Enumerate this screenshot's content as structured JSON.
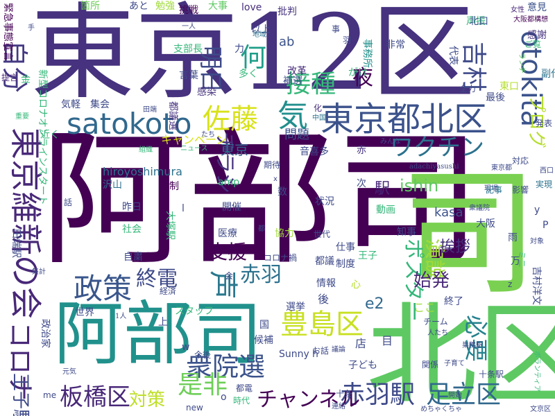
{
  "cloud": {
    "words": [
      {
        "text": "阿部司",
        "weight": 1.0,
        "color": "#440154"
      },
      {
        "text": "東京12区",
        "weight": 0.92,
        "color": "#46327e"
      },
      {
        "text": "北区",
        "weight": 0.66,
        "color": "#5ec962"
      },
      {
        "text": "阿部司",
        "weight": 0.48,
        "color": "#21918c"
      },
      {
        "text": "司",
        "weight": 0.46,
        "color": "#7ad151"
      },
      {
        "text": "otokita",
        "weight": 0.3,
        "color": "#3b528b"
      },
      {
        "text": "東京都北区",
        "weight": 0.26,
        "color": "#3b528b"
      },
      {
        "text": "satokoto",
        "weight": 0.24,
        "color": "#31688e"
      },
      {
        "text": "東京維新の会",
        "weight": 0.24,
        "color": "#482878"
      },
      {
        "text": "自分",
        "weight": 0.18,
        "color": "#443983"
      },
      {
        "text": "豊島区",
        "weight": 0.18,
        "color": "#c8e020"
      },
      {
        "text": "衆院選",
        "weight": 0.18,
        "color": "#3b528b"
      },
      {
        "text": "政策",
        "weight": 0.16,
        "color": "#39568c"
      },
      {
        "text": "ワクチン",
        "weight": 0.16,
        "color": "#2c728e"
      },
      {
        "text": "佐藤",
        "weight": 0.14,
        "color": "#d8e219"
      },
      {
        "text": "赤羽駅",
        "weight": 0.14,
        "color": "#3e4a89"
      },
      {
        "text": "足立区",
        "weight": 0.14,
        "color": "#31688e"
      },
      {
        "text": "板橋区",
        "weight": 0.14,
        "color": "#482878"
      },
      {
        "text": "コロナ",
        "weight": 0.14,
        "color": "#482878"
      },
      {
        "text": "声",
        "weight": 0.14,
        "color": "#2a788e"
      },
      {
        "text": "接種",
        "weight": 0.14,
        "color": "#35b779"
      },
      {
        "text": "何",
        "weight": 0.12,
        "color": "#1f9e89"
      },
      {
        "text": "気",
        "weight": 0.12,
        "color": "#218f8d"
      },
      {
        "text": "明日",
        "weight": 0.12,
        "color": "#3e4a89"
      },
      {
        "text": "吉村",
        "weight": 0.12,
        "color": "#3e4a89"
      },
      {
        "text": "チャンネル",
        "weight": 0.12,
        "color": "#440154"
      },
      {
        "text": "是非",
        "weight": 0.12,
        "color": "#6ece58"
      },
      {
        "text": "必要",
        "weight": 0.1,
        "color": "#26828e"
      },
      {
        "text": "演説",
        "weight": 0.1,
        "color": "#a0da39"
      },
      {
        "text": "王子駅",
        "weight": 0.1,
        "color": "#3e4a89"
      },
      {
        "text": "対策",
        "weight": 0.1,
        "color": "#bddf26"
      },
      {
        "text": "ポスター",
        "weight": 0.1,
        "color": "#35b779"
      },
      {
        "text": "プログ",
        "weight": 0.1,
        "color": "#b5de2b"
      },
      {
        "text": "チラシ",
        "weight": 0.1,
        "color": "#46327e"
      },
      {
        "text": "夜",
        "weight": 0.1,
        "color": "#440154"
      },
      {
        "text": "赤羽",
        "weight": 0.1,
        "color": "#2c728e"
      },
      {
        "text": "支援",
        "weight": 0.1,
        "color": "#440154"
      },
      {
        "text": "終電",
        "weight": 0.1,
        "color": "#3e4a89"
      },
      {
        "text": "始発",
        "weight": 0.1,
        "color": "#482878"
      },
      {
        "text": "挨拶",
        "weight": 0.09,
        "color": "#46327e"
      },
      {
        "text": "ishin",
        "weight": 0.09,
        "color": "#5ec962"
      },
      {
        "text": "キャンペーン",
        "weight": 0.07,
        "color": "#d8e219"
      },
      {
        "text": "東京",
        "weight": 0.07,
        "color": "#31688e"
      },
      {
        "text": "問題",
        "weight": 0.07,
        "color": "#3b528b"
      },
      {
        "text": "e2",
        "weight": 0.07,
        "color": "#31688e"
      },
      {
        "text": "駅",
        "weight": 0.07,
        "color": "#482878"
      },
      {
        "text": "kasa",
        "weight": 0.07,
        "color": "#3b528b"
      },
      {
        "text": "hiroyoshimura",
        "weight": 0.06,
        "color": "#2c728e"
      },
      {
        "text": "新型コロナオンラインスタート",
        "weight": 0.05,
        "color": "#35b779"
      },
      {
        "text": "緊急事態宣言",
        "weight": 0.05,
        "color": "#440154"
      },
      {
        "text": "大事",
        "weight": 0.05,
        "color": "#5ec962"
      },
      {
        "text": "意見",
        "weight": 0.05,
        "color": "#3b528b"
      },
      {
        "text": "感謝",
        "weight": 0.05,
        "color": "#46327e"
      },
      {
        "text": "箇所",
        "weight": 0.04,
        "color": "#6ece58"
      },
      {
        "text": "あと",
        "weight": 0.04,
        "color": "#3e4a89"
      },
      {
        "text": "勉強",
        "weight": 0.04,
        "color": "#a0da39"
      },
      {
        "text": "挑戦",
        "weight": 0.04,
        "color": "#440154"
      },
      {
        "text": "love",
        "weight": 0.04,
        "color": "#472d7b"
      },
      {
        "text": "ab",
        "weight": 0.05,
        "color": "#3b528b"
      },
      {
        "text": "批判",
        "weight": 0.04,
        "color": "#46327e"
      },
      {
        "text": "女性",
        "weight": 0.03,
        "color": "#482878"
      },
      {
        "text": "声援",
        "weight": 0.04,
        "color": "#35b779"
      },
      {
        "text": "北口",
        "weight": 0.04,
        "color": "#3b528b"
      },
      {
        "text": "大阪都構想",
        "weight": 0.03,
        "color": "#440154"
      },
      {
        "text": "以上",
        "weight": 0.04,
        "color": "#3e4a89"
      },
      {
        "text": "地域",
        "weight": 0.03,
        "color": "#2c728e"
      },
      {
        "text": "事務所",
        "weight": 0.04,
        "color": "#21918c"
      },
      {
        "text": "非常",
        "weight": 0.04,
        "color": "#3e4a89"
      },
      {
        "text": "支部長",
        "weight": 0.04,
        "color": "#35b779"
      },
      {
        "text": "力",
        "weight": 0.04,
        "color": "#3e4a89"
      },
      {
        "text": "言葉",
        "weight": 0.04,
        "color": "#3e4a89"
      },
      {
        "text": "改革",
        "weight": 0.04,
        "color": "#472d7b"
      },
      {
        "text": "補選",
        "weight": 0.04,
        "color": "#3e4a89"
      },
      {
        "text": "がけ",
        "weight": 0.04,
        "color": "#35b779"
      },
      {
        "text": "ランチ",
        "weight": 0.03,
        "color": "#5ec962"
      },
      {
        "text": "ご覧",
        "weight": 0.04,
        "color": "#35b779"
      },
      {
        "text": "代表",
        "weight": 0.04,
        "color": "#3e4a89"
      },
      {
        "text": "全力",
        "weight": 0.03,
        "color": "#3e4a89"
      },
      {
        "text": "東口",
        "weight": 0.04,
        "color": "#b5de2b"
      },
      {
        "text": "最後",
        "weight": 0.04,
        "color": "#3e4a89"
      },
      {
        "text": "副代表",
        "weight": 0.04,
        "color": "#2c728e"
      },
      {
        "text": "感染",
        "weight": 0.04,
        "color": "#46327e"
      },
      {
        "text": "多く",
        "weight": 0.04,
        "color": "#35b779"
      },
      {
        "text": "提言",
        "weight": 0.04,
        "color": "#482878"
      },
      {
        "text": "金",
        "weight": 0.04,
        "color": "#35b779"
      },
      {
        "text": "気軽",
        "weight": 0.04,
        "color": "#3e4a89"
      },
      {
        "text": "集会",
        "weight": 0.04,
        "color": "#3e4a89"
      },
      {
        "text": "重要",
        "weight": 0.03,
        "color": "#35b779"
      },
      {
        "text": "都議選",
        "weight": 0.04,
        "color": "#46327e"
      },
      {
        "text": "田端",
        "weight": 0.03,
        "color": "#3e4a89"
      },
      {
        "text": "中国",
        "weight": 0.03,
        "color": "#2c728e"
      },
      {
        "text": "化",
        "weight": 0.03,
        "color": "#472d7b"
      },
      {
        "text": "発表",
        "weight": 0.03,
        "color": "#3e4a89"
      },
      {
        "text": "近く",
        "weight": 0.03,
        "color": "#35b779"
      },
      {
        "text": "たち",
        "weight": 0.03,
        "color": "#3e4a89"
      },
      {
        "text": "ニュース",
        "weight": 0.03,
        "color": "#35b779"
      },
      {
        "text": "組織",
        "weight": 0.03,
        "color": "#35b779"
      },
      {
        "text": "みんな",
        "weight": 0.03,
        "color": "#3e4a89"
      },
      {
        "text": "音喜多",
        "weight": 0.04,
        "color": "#3e4a89"
      },
      {
        "text": "赤",
        "weight": 0.04,
        "color": "#46327e"
      },
      {
        "text": "期待",
        "weight": 0.03,
        "color": "#3e4a89"
      },
      {
        "text": "対応",
        "weight": 0.04,
        "color": "#3e4a89"
      },
      {
        "text": "adachiyasushi",
        "weight": 0.03,
        "color": "#3e4a89"
      },
      {
        "text": "東京都",
        "weight": 0.03,
        "color": "#3e4a89"
      },
      {
        "text": "西口",
        "weight": 0.03,
        "color": "#3e4a89"
      },
      {
        "text": "沢山",
        "weight": 0.04,
        "color": "#2c728e"
      },
      {
        "text": "体制",
        "weight": 0.04,
        "color": "#440154"
      },
      {
        "text": "amp",
        "weight": 0.04,
        "color": "#35b779"
      },
      {
        "text": "x",
        "weight": 0.03,
        "color": "#3e4a89"
      },
      {
        "text": "状況",
        "weight": 0.04,
        "color": "#3e4a89"
      },
      {
        "text": "開催",
        "weight": 0.04,
        "color": "#3e4a89"
      },
      {
        "text": "数",
        "weight": 0.04,
        "color": "#3e4a89"
      },
      {
        "text": "次",
        "weight": 0.04,
        "color": "#3e4a89"
      },
      {
        "text": "現場",
        "weight": 0.03,
        "color": "#3e4a89"
      },
      {
        "text": "記事",
        "weight": 0.04,
        "color": "#2c728e"
      },
      {
        "text": "影響",
        "weight": 0.04,
        "color": "#3e4a89"
      },
      {
        "text": "実現",
        "weight": 0.04,
        "color": "#2c728e"
      },
      {
        "text": "話",
        "weight": 0.04,
        "color": "#3e4a89"
      },
      {
        "text": "昨日",
        "weight": 0.04,
        "color": "#3e4a89"
      },
      {
        "text": "l",
        "weight": 0.04,
        "color": "#3e4a89"
      },
      {
        "text": "動画",
        "weight": 0.04,
        "color": "#35b779"
      },
      {
        "text": "衆議院",
        "weight": 0.03,
        "color": "#3e4a89"
      },
      {
        "text": "社会",
        "weight": 0.04,
        "color": "#35b779"
      },
      {
        "text": "大塚駅",
        "weight": 0.04,
        "color": "#35b779"
      },
      {
        "text": "都",
        "weight": 0.03,
        "color": "#3e4a89"
      },
      {
        "text": "医療",
        "weight": 0.04,
        "color": "#3e4a89"
      },
      {
        "text": "協力",
        "weight": 0.04,
        "color": "#a0da39"
      },
      {
        "text": "知事",
        "weight": 0.04,
        "color": "#3e4a89"
      },
      {
        "text": "大阪",
        "weight": 0.04,
        "color": "#3e4a89"
      },
      {
        "text": "P",
        "weight": 0.04,
        "color": "#3e4a89"
      },
      {
        "text": "y",
        "weight": 0.04,
        "color": "#3e4a89"
      },
      {
        "text": "田端駅",
        "weight": 0.04,
        "color": "#3e4a89"
      },
      {
        "text": "世代",
        "weight": 0.03,
        "color": "#3e4a89"
      },
      {
        "text": "仕事",
        "weight": 0.04,
        "color": "#3e4a89"
      },
      {
        "text": "雨",
        "weight": 0.04,
        "color": "#3e4a89"
      },
      {
        "text": "自粛",
        "weight": 0.04,
        "color": "#3e4a89"
      },
      {
        "text": "コロナ禍",
        "weight": 0.03,
        "color": "#3e4a89"
      },
      {
        "text": "都議",
        "weight": 0.04,
        "color": "#3e4a89"
      },
      {
        "text": "制度",
        "weight": 0.04,
        "color": "#3e4a89"
      },
      {
        "text": "王子",
        "weight": 0.04,
        "color": "#35b779"
      },
      {
        "text": "万",
        "weight": 0.04,
        "color": "#3e4a89"
      },
      {
        "text": "吉村洋文",
        "weight": 0.04,
        "color": "#3e4a89"
      },
      {
        "text": "ミニ",
        "weight": 0.03,
        "color": "#35b779"
      },
      {
        "text": "対象",
        "weight": 0.03,
        "color": "#3e4a89"
      },
      {
        "text": "集計",
        "weight": 0.03,
        "color": "#3e4a89"
      },
      {
        "text": "経済",
        "weight": 0.03,
        "color": "#3e4a89"
      },
      {
        "text": "会",
        "weight": 0.03,
        "color": "#3e4a89"
      },
      {
        "text": "情報",
        "weight": 0.04,
        "color": "#3e4a89"
      },
      {
        "text": "心",
        "weight": 0.04,
        "color": "#b5de2b"
      },
      {
        "text": "後",
        "weight": 0.04,
        "color": "#3e4a89"
      },
      {
        "text": "z",
        "weight": 0.03,
        "color": "#3e4a89"
      },
      {
        "text": "世界",
        "weight": 0.04,
        "color": "#3e4a89"
      },
      {
        "text": "スタッフ",
        "weight": 0.04,
        "color": "#35b779"
      },
      {
        "text": "選挙",
        "weight": 0.04,
        "color": "#3e4a89"
      },
      {
        "text": "ここ",
        "weight": 0.04,
        "color": "#a0da39"
      },
      {
        "text": "終了",
        "weight": 0.04,
        "color": "#3e4a89"
      },
      {
        "text": "1人",
        "weight": 0.03,
        "color": "#3e4a89"
      },
      {
        "text": "上",
        "weight": 0.04,
        "color": "#3e4a89"
      },
      {
        "text": "国",
        "weight": 0.04,
        "color": "#3e4a89"
      },
      {
        "text": "チーム",
        "weight": 0.04,
        "color": "#3e4a89"
      },
      {
        "text": "人たち",
        "weight": 0.03,
        "color": "#3e4a89"
      },
      {
        "text": "政治家",
        "weight": 0.04,
        "color": "#3e4a89"
      },
      {
        "text": "候補",
        "weight": 0.04,
        "color": "#3e4a89"
      },
      {
        "text": "店",
        "weight": 0.04,
        "color": "#3e4a89"
      },
      {
        "text": "目",
        "weight": 0.04,
        "color": "#3e4a89"
      },
      {
        "text": "子ども",
        "weight": 0.04,
        "color": "#3e4a89"
      },
      {
        "text": "巣鴨駅",
        "weight": 0.03,
        "color": "#3e4a89"
      },
      {
        "text": "十条駅",
        "weight": 0.04,
        "color": "#3e4a89"
      },
      {
        "text": "ボランティア",
        "weight": 0.03,
        "color": "#35b779"
      },
      {
        "text": "Sunny",
        "weight": 0.04,
        "color": "#3e4a89"
      },
      {
        "text": "h",
        "weight": 0.04,
        "color": "#3e4a89"
      },
      {
        "text": "今後",
        "weight": 0.04,
        "color": "#3e4a89"
      },
      {
        "text": "w",
        "weight": 0.04,
        "color": "#3e4a89"
      },
      {
        "text": "元気",
        "weight": 0.03,
        "color": "#3e4a89"
      },
      {
        "text": "都電",
        "weight": 0.04,
        "color": "#3e4a89"
      },
      {
        "text": "me",
        "weight": 0.04,
        "color": "#3e4a89"
      },
      {
        "text": "o",
        "weight": 0.04,
        "color": "#3e4a89"
      },
      {
        "text": "時代",
        "weight": 0.04,
        "color": "#35b779"
      },
      {
        "text": "十条",
        "weight": 0.04,
        "color": "#3e4a89"
      },
      {
        "text": "new",
        "weight": 0.04,
        "color": "#3e4a89"
      },
      {
        "text": "連絡",
        "weight": 0.03,
        "color": "#3e4a89"
      },
      {
        "text": "めちゃくちゃ",
        "weight": 0.03,
        "color": "#3e4a89"
      },
      {
        "text": "文京区",
        "weight": 0.03,
        "color": "#3e4a89"
      },
      {
        "text": "開始",
        "weight": 0.03,
        "color": "#3e4a89"
      },
      {
        "text": "子育て",
        "weight": 0.03,
        "color": "#3e4a89"
      },
      {
        "text": "関係",
        "weight": 0.03,
        "color": "#3e4a89"
      },
      {
        "text": "議論",
        "weight": 0.03,
        "color": "#3e4a89"
      },
      {
        "text": "お話",
        "weight": 0.03,
        "color": "#3e4a89"
      },
      {
        "text": "羽",
        "weight": 0.03,
        "color": "#3e4a89"
      },
      {
        "text": "事",
        "weight": 0.03,
        "color": "#3e4a89"
      },
      {
        "text": "手",
        "weight": 0.03,
        "color": "#3e4a89"
      },
      {
        "text": "一人",
        "weight": 0.03,
        "color": "#3e4a89"
      }
    ]
  }
}
